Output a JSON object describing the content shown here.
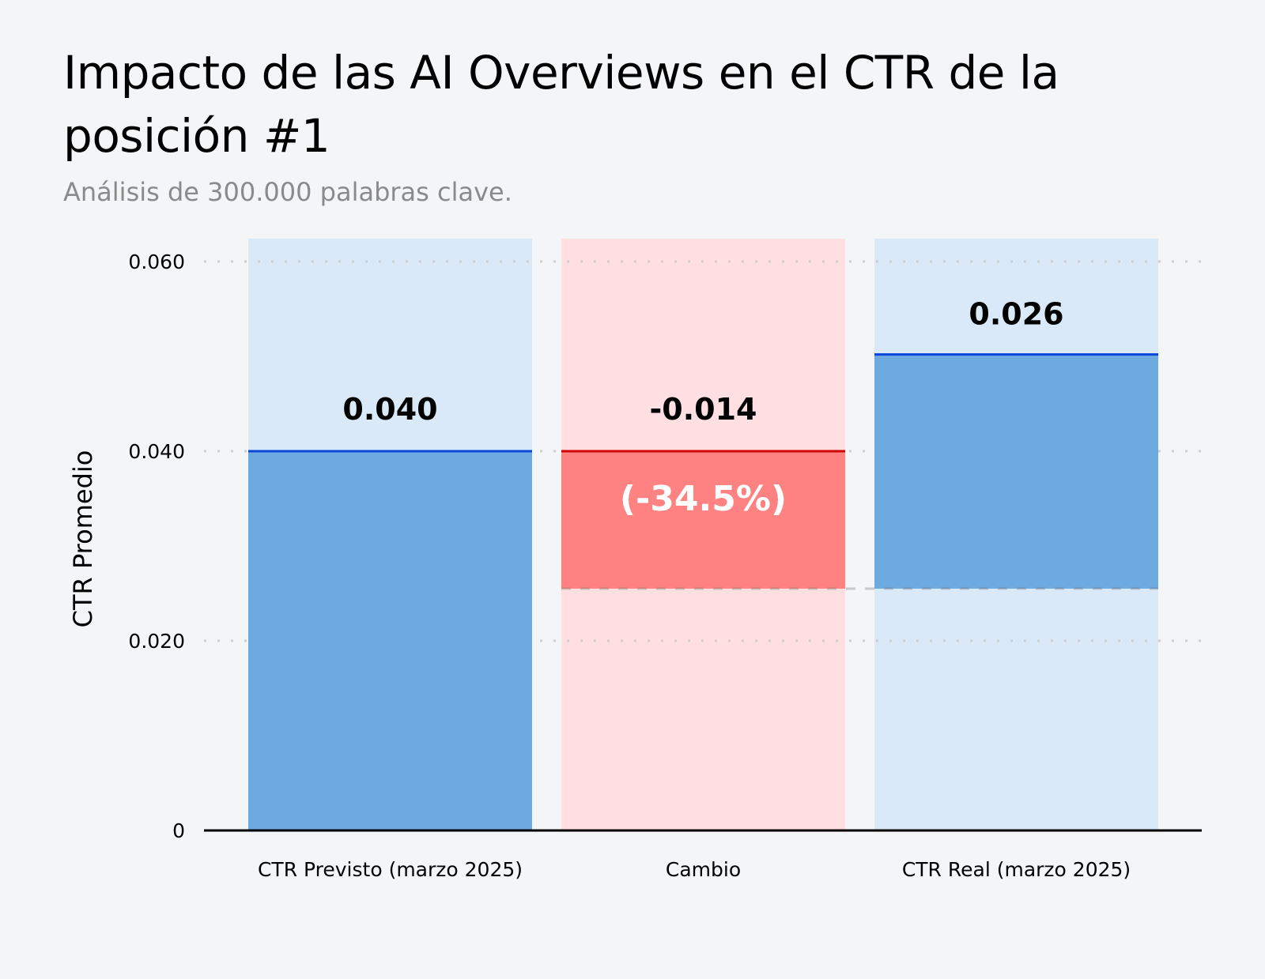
{
  "chart_data": {
    "type": "bar",
    "title": "Impacto de las AI Overviews en el CTR de la posición #1",
    "subtitle": "Análisis de 300.000 palabras clave.",
    "ylabel": "CTR Promedio",
    "xlabel": "",
    "ylim": [
      0,
      0.062
    ],
    "yticks": [
      0,
      0.02,
      0.04,
      0.06
    ],
    "ytick_labels": [
      "0",
      "0.020",
      "0.040",
      "0.060"
    ],
    "grid": true,
    "categories": [
      "CTR Previsto (marzo 2025)",
      "Cambio",
      "CTR Real (marzo 2025)"
    ],
    "values": [
      0.04,
      -0.014,
      0.026
    ],
    "data_labels": [
      "0.040",
      "-0.014",
      "0.026"
    ],
    "annotation": "(-34.5%)",
    "colors": {
      "bar": "#6caae0",
      "bar_background": "#d9e9f8",
      "bar_top": "#0a46d8",
      "change": "#ff8282",
      "change_background": "#ffdfe1",
      "change_top": "#d10000",
      "background": "#f4f5f7"
    }
  }
}
